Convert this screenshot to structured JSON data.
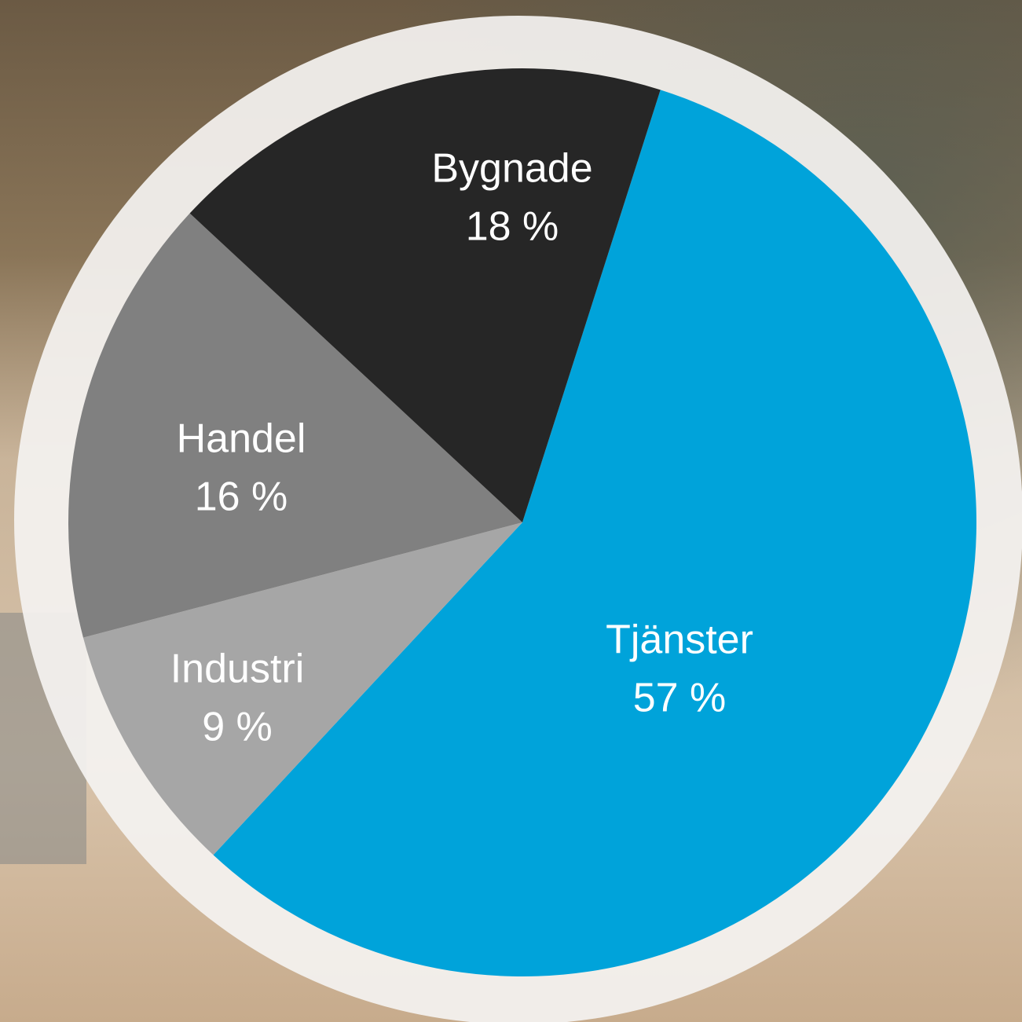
{
  "chart_data": {
    "type": "pie",
    "categories": [
      "Tjänster",
      "Industri",
      "Handel",
      "Bygnade"
    ],
    "values": [
      57,
      9,
      16,
      18
    ],
    "value_labels": [
      "57 %",
      "9 %",
      "16 %",
      "18 %"
    ],
    "colors": [
      "#00a3da",
      "#a6a6a6",
      "#808080",
      "#262626"
    ]
  }
}
